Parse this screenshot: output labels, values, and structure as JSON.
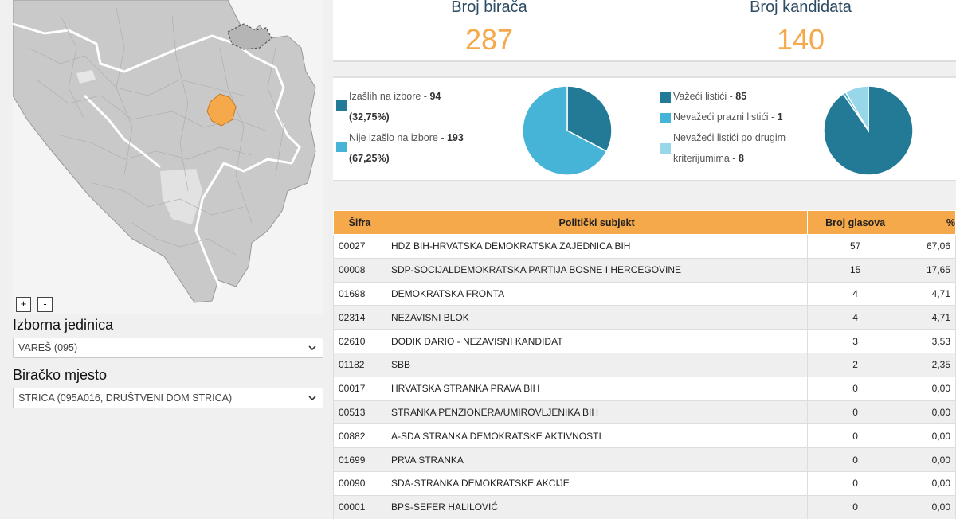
{
  "map": {
    "zoom_in": "+",
    "zoom_out": "-",
    "highlight_color": "#f5a94a"
  },
  "electoral_unit": {
    "label": "Izborna jedinica",
    "selected": "VAREŠ (095)"
  },
  "polling_station": {
    "label": "Biračko mjesto",
    "selected": "STRICA (095A016, DRUŠTVENI DOM STRICA)"
  },
  "stats": {
    "voters_label": "Broj birača",
    "voters_value": "287",
    "candidates_label": "Broj kandidata",
    "candidates_value": "140"
  },
  "turnout": {
    "voted_label": "Izašlih na izbore - ",
    "voted_count": "94",
    "voted_pct": "(32,75%)",
    "not_voted_label": "Nije izašlo na izbore - ",
    "not_voted_count": "193",
    "not_voted_pct": "(67,25%)",
    "voted_color": "#237a96",
    "not_voted_color": "#46b4d6",
    "voted_fraction": 0.3275
  },
  "ballots": {
    "valid_label": "Važeći listići - ",
    "valid_count": "85",
    "blank_label": "Nevažeći prazni listići - ",
    "blank_count": "1",
    "other_label_1": "Nevažeći listići po drugim",
    "other_label_2": "kriterijumima - ",
    "other_count": "8",
    "valid_color": "#237a96",
    "blank_color": "#46b4d6",
    "other_color": "#98d6ea",
    "values": [
      85,
      1,
      8
    ]
  },
  "table": {
    "headers": [
      "Šifra",
      "Politički subjekt",
      "Broj glasova",
      "%"
    ],
    "rows": [
      [
        "00027",
        "HDZ BIH-HRVATSKA DEMOKRATSKA ZAJEDNICA BIH",
        "57",
        "67,06"
      ],
      [
        "00008",
        "SDP-SOCIJALDEMOKRATSKA PARTIJA BOSNE I HERCEGOVINE",
        "15",
        "17,65"
      ],
      [
        "01698",
        "DEMOKRATSKA FRONTA",
        "4",
        "4,71"
      ],
      [
        "02314",
        "NEZAVISNI BLOK",
        "4",
        "4,71"
      ],
      [
        "02610",
        "DODIK DARIO - NEZAVISNI KANDIDAT",
        "3",
        "3,53"
      ],
      [
        "01182",
        "SBB",
        "2",
        "2,35"
      ],
      [
        "00017",
        "HRVATSKA STRANKA PRAVA BIH",
        "0",
        "0,00"
      ],
      [
        "00513",
        "STRANKA PENZIONERA/UMIROVLJENIKA BIH",
        "0",
        "0,00"
      ],
      [
        "00882",
        "A-SDA STRANKA DEMOKRATSKE AKTIVNOSTI",
        "0",
        "0,00"
      ],
      [
        "01699",
        "PRVA STRANKA",
        "0",
        "0,00"
      ],
      [
        "00090",
        "SDA-STRANKA DEMOKRATSKE AKCIJE",
        "0",
        "0,00"
      ],
      [
        "00001",
        "BPS-SEFER HALILOVIĆ",
        "0",
        "0,00"
      ]
    ]
  }
}
